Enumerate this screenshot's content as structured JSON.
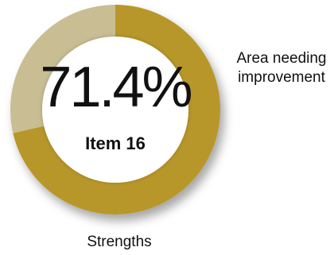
{
  "chart_data": {
    "type": "pie",
    "style": "donut",
    "center_value": "71.4%",
    "center_label": "Item 16",
    "series": [
      {
        "name": "Strengths",
        "value": 71.4,
        "color": "#b8972a"
      },
      {
        "name": "Area needing improvement",
        "value": 28.6,
        "color": "#c9bd93"
      }
    ],
    "labels": {
      "strengths": "Strengths",
      "improvement_line1": "Area needing",
      "improvement_line2": "improvement"
    }
  }
}
